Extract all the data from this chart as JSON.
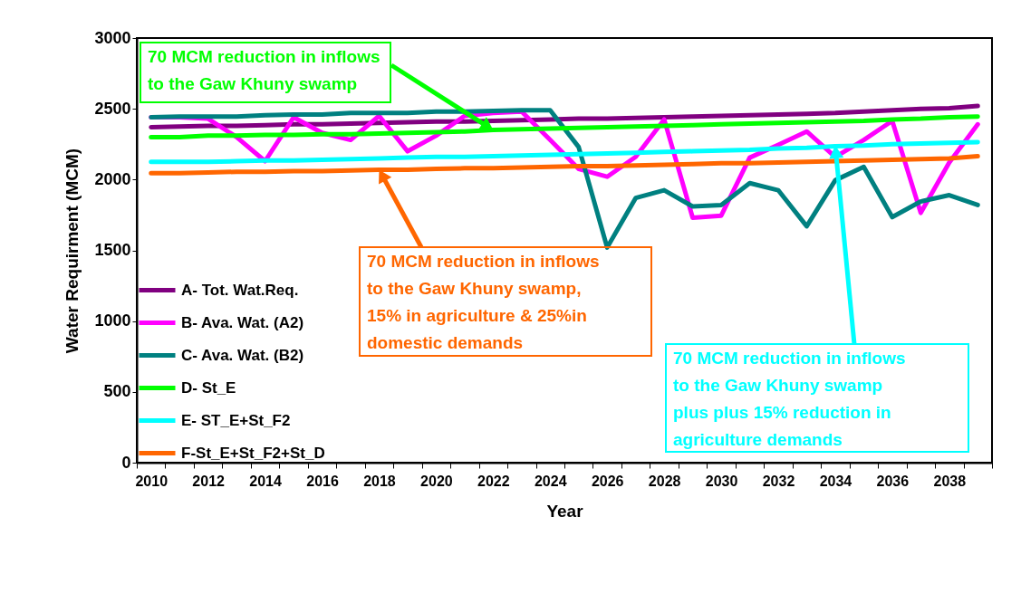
{
  "chart_data": {
    "type": "line",
    "xlabel": "Year",
    "ylabel": "Water Requirment (MCM)",
    "categories": [
      "2010",
      null,
      "2012",
      null,
      "2014",
      null,
      "2016",
      null,
      "2018",
      null,
      "2020",
      null,
      "2022",
      null,
      "2024",
      null,
      "2026",
      null,
      "2028",
      null,
      "2030",
      null,
      "2032",
      null,
      "2034",
      null,
      "2036",
      null,
      "2038",
      null
    ],
    "ylim": [
      0,
      3000
    ],
    "yticks": [
      0,
      500,
      1000,
      1500,
      2000,
      2500,
      3000
    ],
    "grid": false,
    "legend": "bottom left",
    "line_style": "solid",
    "marker": "none",
    "series": [
      {
        "name": "A- Tot. Wat.Req.",
        "color": "#800080",
        "values": [
          2370,
          2375,
          2380,
          2380,
          2385,
          2390,
          2390,
          2395,
          2400,
          2405,
          2410,
          2410,
          2415,
          2420,
          2425,
          2430,
          2430,
          2435,
          2440,
          2445,
          2450,
          2455,
          2460,
          2465,
          2470,
          2480,
          2490,
          2500,
          2505,
          2520
        ]
      },
      {
        "name": "B- Ava. Wat. (A2)",
        "color": "#ff00ff",
        "values": [
          2440,
          2440,
          2430,
          2300,
          2130,
          2440,
          2330,
          2280,
          2450,
          2200,
          2310,
          2450,
          2470,
          2480,
          2280,
          2075,
          2020,
          2160,
          2425,
          1730,
          1745,
          2155,
          2245,
          2340,
          2160,
          2280,
          2415,
          1765,
          2120,
          2390
        ]
      },
      {
        "name": "C- Ava. Wat. (B2)",
        "color": "#008080",
        "values": [
          2440,
          2445,
          2445,
          2445,
          2455,
          2460,
          2460,
          2470,
          2470,
          2470,
          2480,
          2480,
          2485,
          2490,
          2490,
          2230,
          1520,
          1870,
          1925,
          1810,
          1820,
          1975,
          1925,
          1670,
          1995,
          2090,
          1735,
          1845,
          1890,
          1820
        ]
      },
      {
        "name": "D- St_E",
        "color": "#00ff00",
        "values": [
          2300,
          2300,
          2310,
          2310,
          2315,
          2315,
          2320,
          2320,
          2325,
          2330,
          2335,
          2340,
          2350,
          2355,
          2360,
          2365,
          2370,
          2375,
          2380,
          2385,
          2390,
          2395,
          2400,
          2405,
          2410,
          2415,
          2425,
          2430,
          2440,
          2445
        ]
      },
      {
        "name": "E- ST_E+St_F2",
        "color": "#00ffff",
        "values": [
          2125,
          2125,
          2125,
          2130,
          2135,
          2135,
          2140,
          2145,
          2150,
          2155,
          2160,
          2160,
          2165,
          2170,
          2175,
          2180,
          2185,
          2190,
          2195,
          2200,
          2205,
          2210,
          2220,
          2225,
          2235,
          2240,
          2250,
          2255,
          2260,
          2265
        ]
      },
      {
        "name": "F-St_E+St_F2+St_D",
        "color": "#ff6600",
        "values": [
          2045,
          2045,
          2050,
          2055,
          2055,
          2060,
          2060,
          2065,
          2070,
          2070,
          2075,
          2080,
          2080,
          2085,
          2090,
          2095,
          2095,
          2100,
          2105,
          2110,
          2115,
          2115,
          2120,
          2125,
          2130,
          2135,
          2140,
          2145,
          2150,
          2165
        ]
      }
    ],
    "annotations": [
      {
        "text": "70 MCM reduction in inflows\nto the Gaw Khuny  swamp",
        "x": "2022",
        "y": 2350
      },
      {
        "text": "70 MCM reduction in inflows\n to the Gaw Khuny  swamp,\n15% in agriculture & 25%in\ndomestic  demands",
        "x": "2018",
        "y": 2070
      },
      {
        "text": "70 MCM reduction in inflows\nto the Gaw Khuny  swamp\nplus plus 15% reduction in\nagriculture demands",
        "x": "2034",
        "y": 2240
      }
    ]
  }
}
